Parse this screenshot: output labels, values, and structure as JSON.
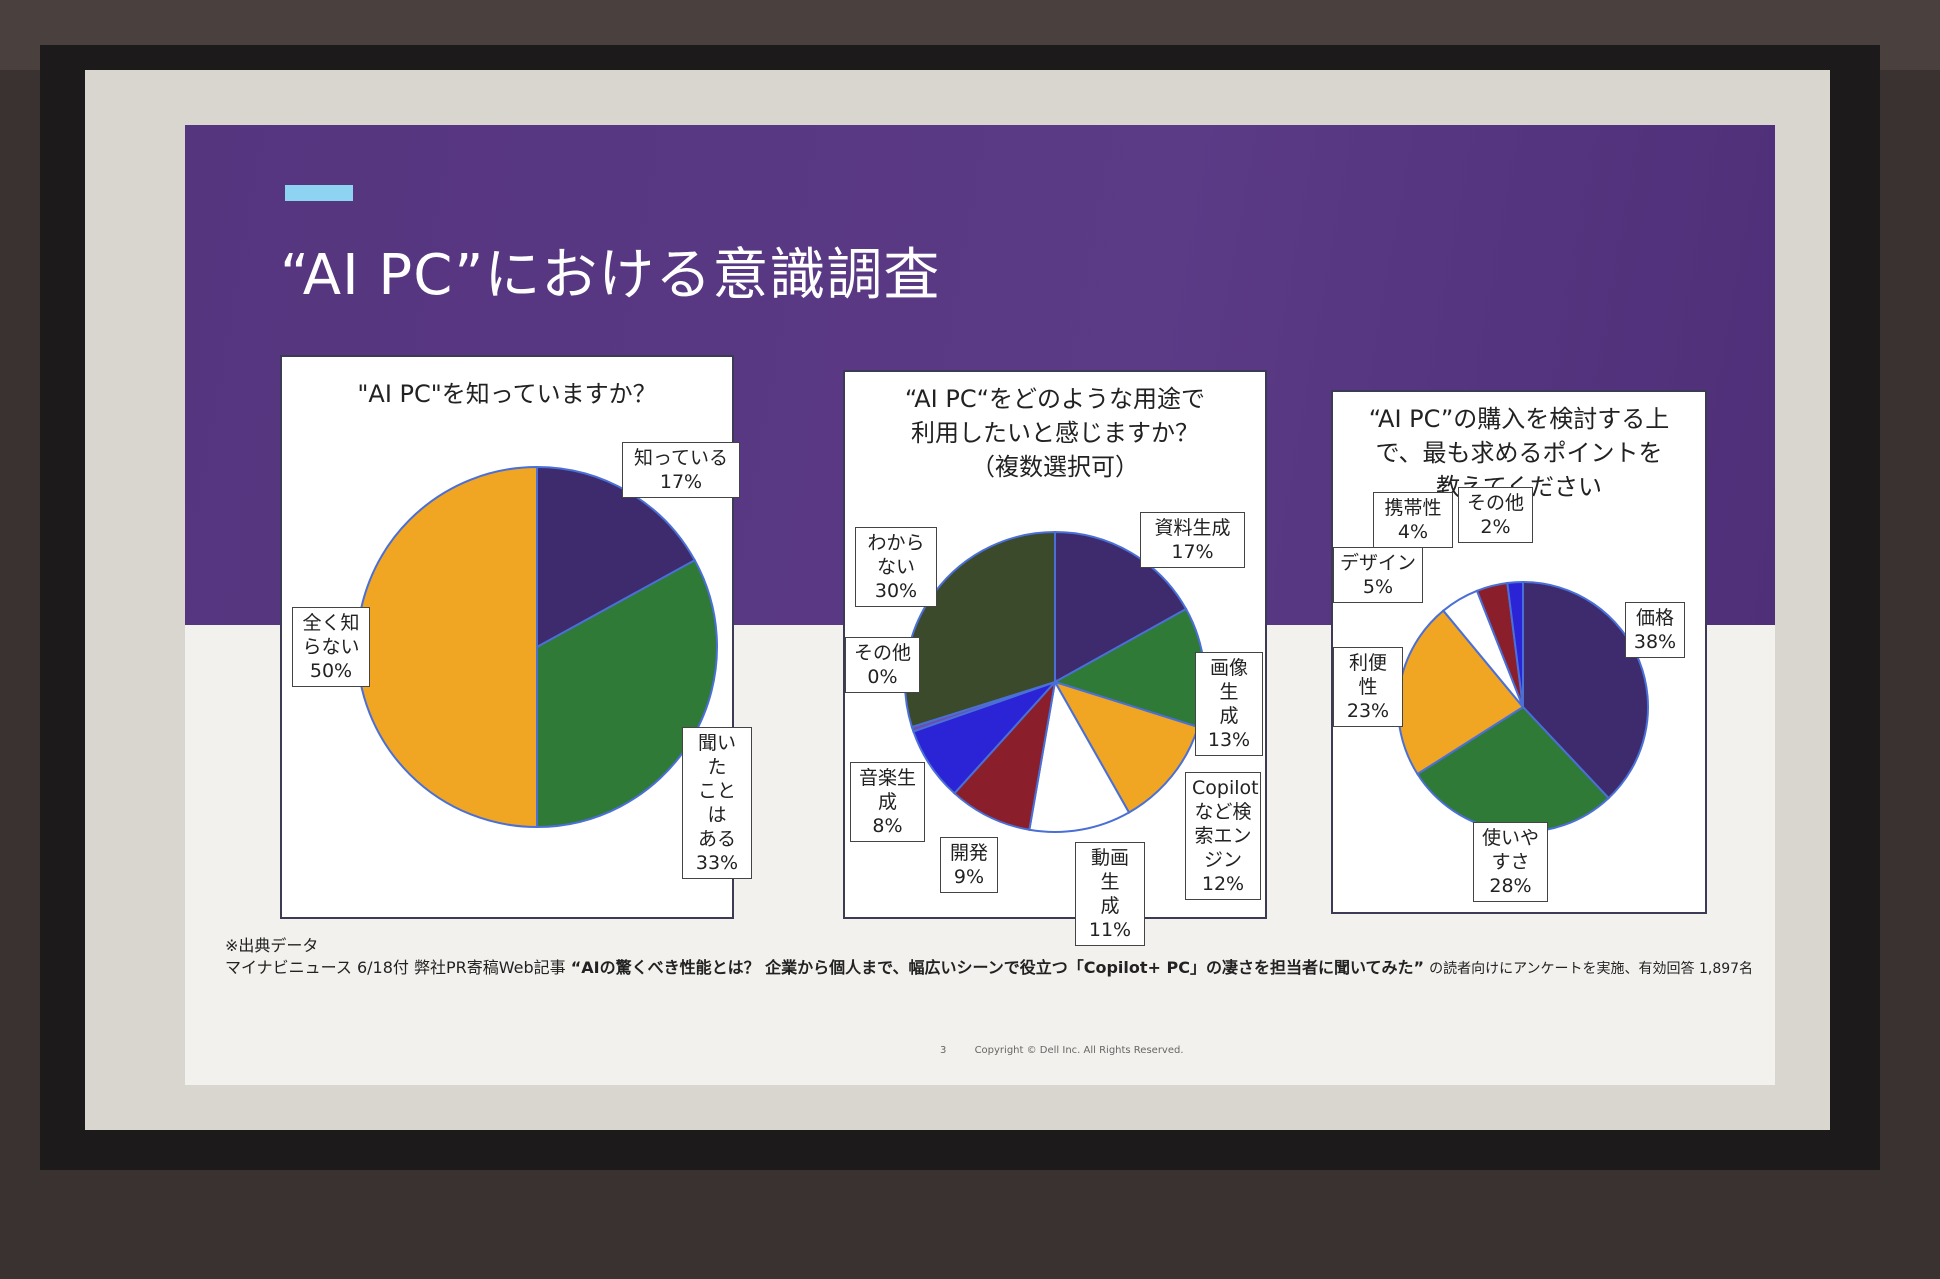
{
  "slide": {
    "title": "“AI PC”における意識調査",
    "source_heading": "※出典データ",
    "source_prefix": "マイナビニュース 6/18付 弊社PR寄稿Web記事",
    "source_article": "“AIの驚くべき性能とは？ 企業から個人まで、幅広いシーンで役立つ「Copilot+ PC」の凄さを担当者に聞いてみた”",
    "source_suffix": "の読者向けにアンケートを実施、有効回答 1,897名",
    "page_number": "3",
    "copyright": "Copyright © Dell Inc. All Rights Reserved."
  },
  "colors": {
    "purple": "#3d2b6e",
    "green": "#2e7a36",
    "orange": "#f0a623",
    "dark_olive": "#3a4a2a",
    "white": "#ffffff",
    "maroon": "#8b1e2b",
    "blue": "#2a24d6",
    "slide_band": "#5b3a86",
    "accent": "#8fd3f2"
  },
  "chart_data": [
    {
      "type": "pie",
      "title": "\"AI PC\"を知っていますか？",
      "slices": [
        {
          "label": "知っている\n17%",
          "value": 17,
          "color": "#3d2b6e"
        },
        {
          "label": "聞いた\nことは\nある\n33%",
          "value": 33,
          "color": "#2e7a36"
        },
        {
          "label": "全く知\nらない\n50%",
          "value": 50,
          "color": "#f0a623"
        }
      ]
    },
    {
      "type": "pie",
      "title": "“AI PC“をどのような用途で\n利用したいと感じますか？\n（複数選択可）",
      "slices": [
        {
          "label": "資料生成\n17%",
          "value": 17,
          "color": "#3d2b6e"
        },
        {
          "label": "画像生\n成\n13%",
          "value": 13,
          "color": "#2e7a36"
        },
        {
          "label": "Copilot\nなど検\n索エン\nジン\n12%",
          "value": 12,
          "color": "#f0a623"
        },
        {
          "label": "動画生\n成\n11%",
          "value": 11,
          "color": "#ffffff"
        },
        {
          "label": "開発\n9%",
          "value": 9,
          "color": "#8b1e2b"
        },
        {
          "label": "音楽生\n成\n8%",
          "value": 8,
          "color": "#2a24d6"
        },
        {
          "label": "その他\n0%",
          "value": 0.5,
          "color": "#6b4fa8"
        },
        {
          "label": "わから\nない\n30%",
          "value": 30,
          "color": "#3a4a2a"
        }
      ]
    },
    {
      "type": "pie",
      "title": "“AI PC”の購入を検討する上\nで、最も求めるポイントを\n教えてください",
      "slices": [
        {
          "label": "価格\n38%",
          "value": 38,
          "color": "#3d2b6e"
        },
        {
          "label": "使いや\nすさ\n28%",
          "value": 28,
          "color": "#2e7a36"
        },
        {
          "label": "利便性\n23%",
          "value": 23,
          "color": "#f0a623"
        },
        {
          "label": "デザイン\n5%",
          "value": 5,
          "color": "#ffffff"
        },
        {
          "label": "携帯性\n4%",
          "value": 4,
          "color": "#8b1e2b"
        },
        {
          "label": "その他\n2%",
          "value": 2,
          "color": "#2a24d6"
        }
      ]
    }
  ]
}
